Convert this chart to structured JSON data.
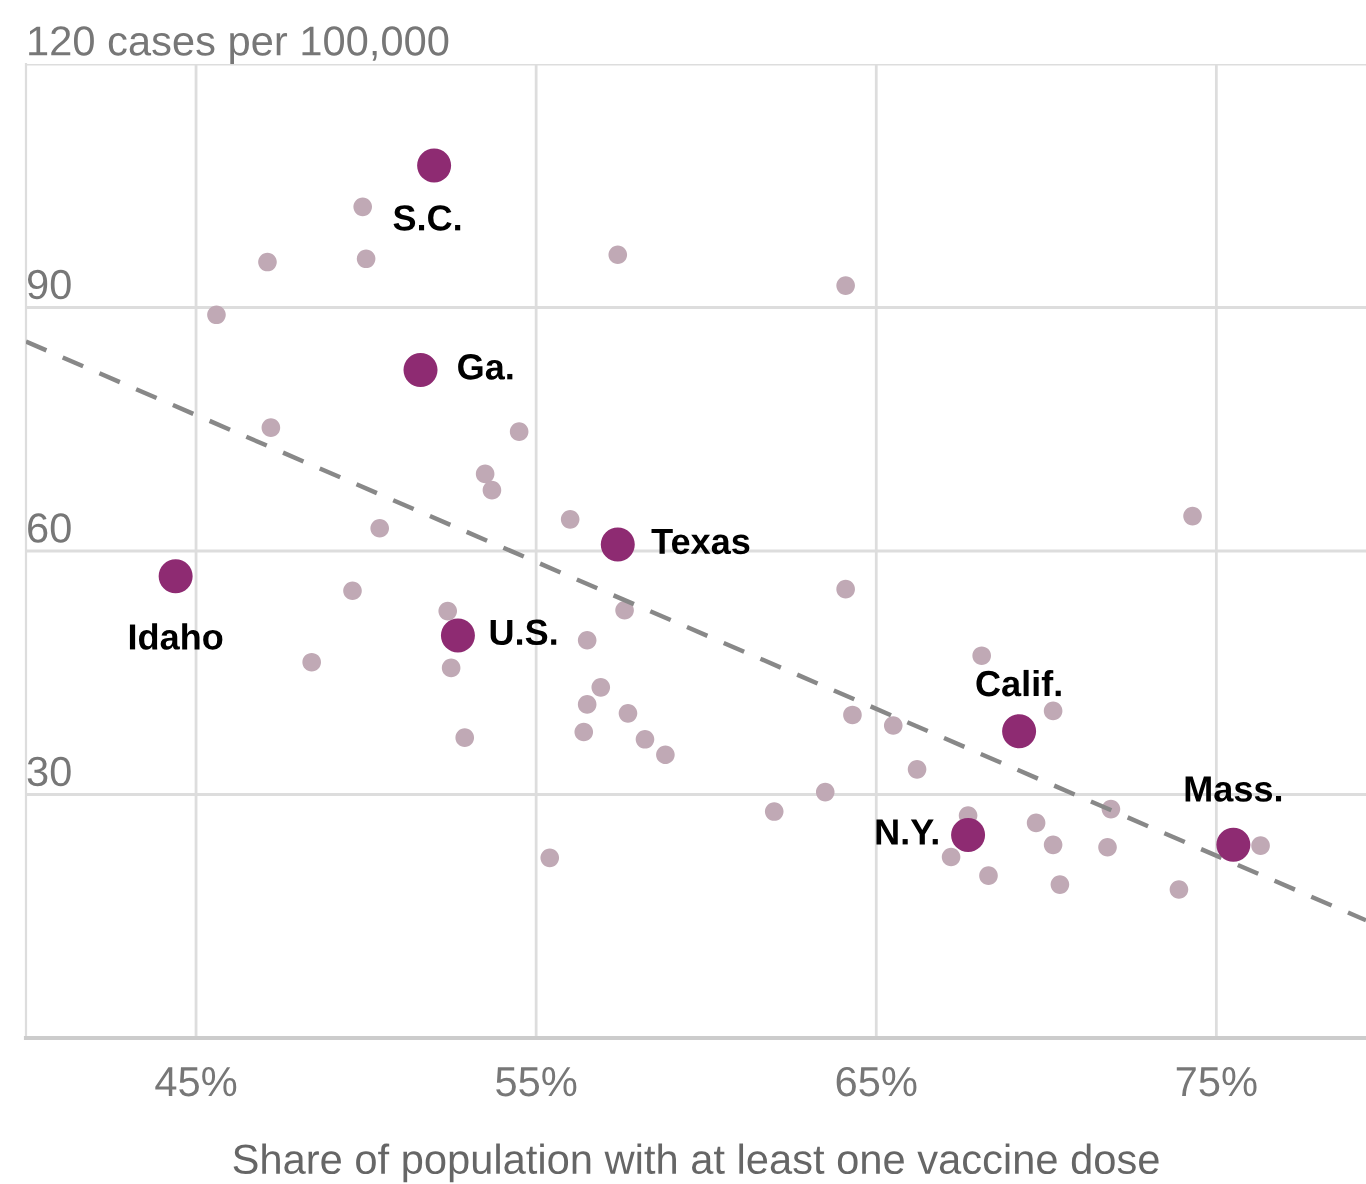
{
  "chart_data": {
    "type": "scatter",
    "xlabel": "Share of population with at least one vaccine dose",
    "xlim": [
      40,
      79.4
    ],
    "ylim": [
      0,
      120
    ],
    "xticks": [
      {
        "value": 45,
        "label": "45%"
      },
      {
        "value": 55,
        "label": "55%"
      },
      {
        "value": 65,
        "label": "65%"
      },
      {
        "value": 75,
        "label": "75%"
      }
    ],
    "yticks": [
      30,
      60,
      90,
      {
        "value": 120,
        "label": "120 cases per 100,000"
      }
    ],
    "grid": true,
    "marker": "circle",
    "series": [
      {
        "color": "#c0a9b5",
        "x": [
          49.9,
          47.1,
          50.0,
          57.4,
          45.6,
          47.2,
          54.5,
          53.5,
          53.7,
          50.4,
          56.0,
          49.6,
          64.1,
          74.3,
          64.1,
          52.4,
          48.4,
          52.5,
          52.9,
          57.6,
          56.5,
          56.9,
          56.5,
          57.7,
          56.4,
          58.2,
          58.8,
          55.4,
          68.1,
          70.2,
          64.3,
          65.5,
          66.2,
          63.5,
          62.0,
          67.7,
          67.2,
          68.3,
          69.7,
          70.2,
          70.4,
          71.9,
          71.8,
          73.9,
          76.3
        ],
        "values": [
          102.4,
          95.6,
          96.0,
          96.5,
          89.1,
          75.2,
          74.7,
          69.5,
          67.5,
          62.8,
          63.9,
          55.1,
          92.7,
          64.3,
          55.3,
          52.6,
          46.3,
          45.6,
          37.0,
          52.7,
          49.0,
          43.2,
          41.1,
          40.0,
          37.7,
          36.8,
          34.9,
          22.2,
          47.1,
          40.3,
          39.8,
          38.5,
          33.1,
          30.3,
          27.9,
          27.4,
          22.3,
          20.0,
          26.5,
          23.8,
          18.9,
          28.2,
          23.5,
          18.3,
          23.7
        ]
      },
      {
        "type": "line",
        "color": "#888888",
        "line_style": "dashed",
        "marker": "none",
        "x": [
          40,
          79.4
        ],
        "values": [
          85.8,
          14.5
        ]
      },
      {
        "color": "#8e2b72",
        "x": [
          52.0,
          51.6,
          57.4,
          44.4,
          52.7,
          69.2,
          67.7,
          75.5
        ],
        "values": [
          107.5,
          82.3,
          60.8,
          56.9,
          49.6,
          37.8,
          25.0,
          23.8
        ]
      }
    ],
    "annotations": [
      {
        "text": "S.C.",
        "x": 52.0,
        "y": 107.5
      },
      {
        "text": "Ga.",
        "x": 51.6,
        "y": 82.3
      },
      {
        "text": "Texas",
        "x": 57.4,
        "y": 60.8
      },
      {
        "text": "Idaho",
        "x": 44.4,
        "y": 56.9
      },
      {
        "text": "U.S.",
        "x": 52.7,
        "y": 49.6
      },
      {
        "text": "Calif.",
        "x": 69.2,
        "y": 37.8
      },
      {
        "text": "N.Y.",
        "x": 67.7,
        "y": 25.0
      },
      {
        "text": "Mass.",
        "x": 75.5,
        "y": 23.8
      }
    ]
  }
}
